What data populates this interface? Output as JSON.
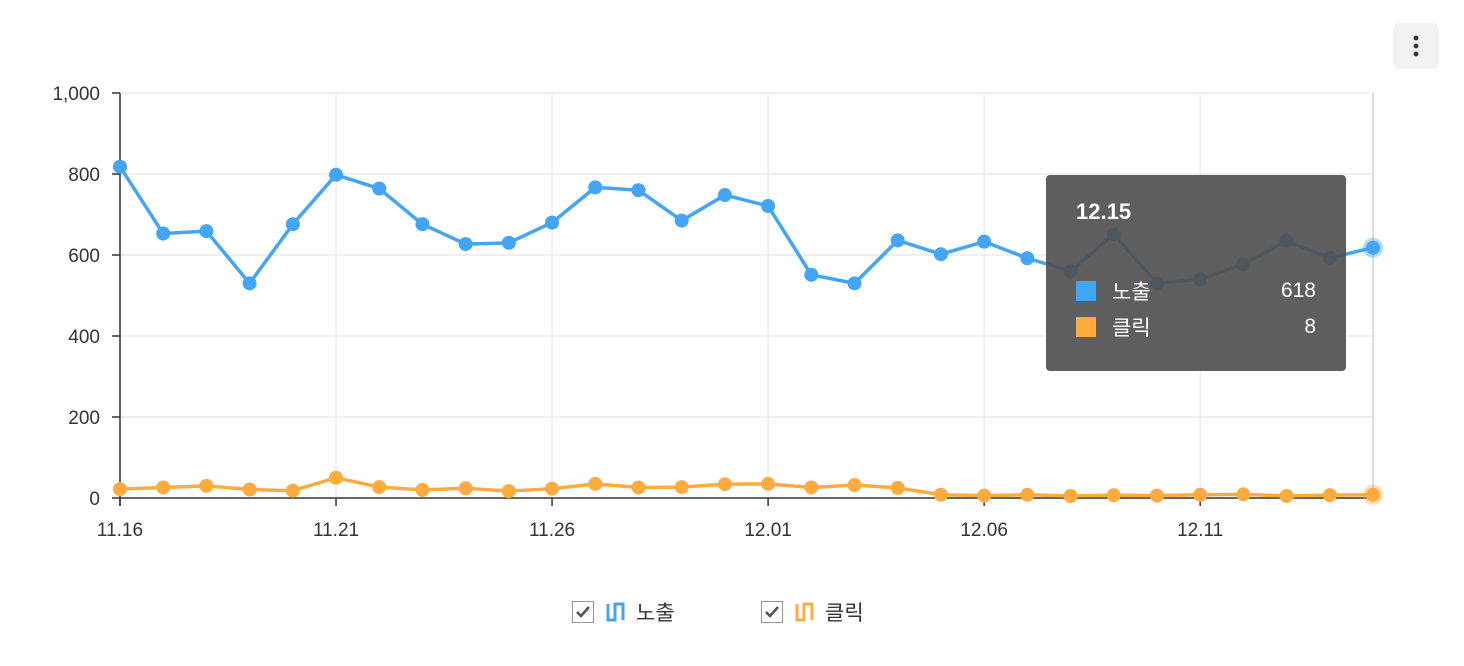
{
  "chart_data": {
    "type": "line",
    "categories": [
      "11.16",
      "11.17",
      "11.18",
      "11.19",
      "11.20",
      "11.21",
      "11.22",
      "11.23",
      "11.24",
      "11.25",
      "11.26",
      "11.27",
      "11.28",
      "11.29",
      "11.30",
      "12.01",
      "12.02",
      "12.03",
      "12.04",
      "12.05",
      "12.06",
      "12.07",
      "12.08",
      "12.09",
      "12.10",
      "12.11",
      "12.12",
      "12.13",
      "12.14",
      "12.15"
    ],
    "x_tick_labels": [
      "11.16",
      "11.21",
      "11.26",
      "12.01",
      "12.06",
      "12.11"
    ],
    "y_tick_labels": [
      "0",
      "200",
      "400",
      "600",
      "800",
      "1,000"
    ],
    "ylim": [
      0,
      1000
    ],
    "series": [
      {
        "name": "노출",
        "color": "#42a5f5",
        "values": [
          818,
          653,
          659,
          530,
          676,
          798,
          764,
          676,
          627,
          630,
          680,
          767,
          760,
          685,
          748,
          721,
          551,
          530,
          636,
          602,
          633,
          592,
          560,
          651,
          530,
          540,
          577,
          635,
          593,
          618
        ]
      },
      {
        "name": "클릭",
        "color": "#ffab40",
        "values": [
          22,
          26,
          30,
          21,
          18,
          50,
          27,
          20,
          24,
          17,
          23,
          35,
          26,
          27,
          34,
          35,
          26,
          32,
          25,
          8,
          6,
          8,
          5,
          7,
          6,
          8,
          9,
          5,
          7,
          8
        ]
      }
    ],
    "grid": true,
    "legend_position": "bottom"
  },
  "tooltip": {
    "title": "12.15",
    "rows": [
      {
        "name": "노출",
        "value": "618",
        "color": "#42a5f5"
      },
      {
        "name": "클릭",
        "value": "8",
        "color": "#ffab40"
      }
    ]
  },
  "legend": [
    {
      "label": "노출",
      "checked": true,
      "color": "#42a5f5"
    },
    {
      "label": "클릭",
      "checked": true,
      "color": "#ffab40"
    }
  ],
  "menu_icon": "more-vertical-icon"
}
